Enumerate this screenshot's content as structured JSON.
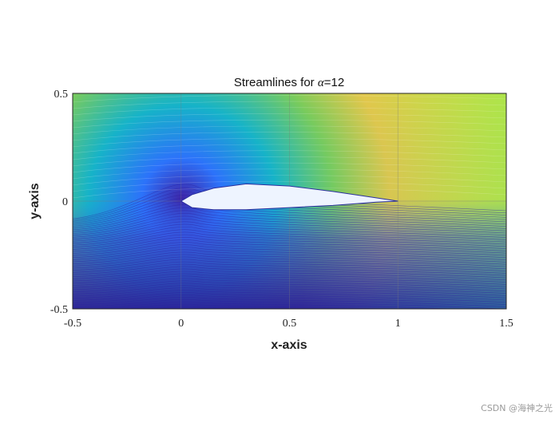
{
  "chart_data": {
    "type": "streamline",
    "title_prefix": "Streamlines for ",
    "title_symbol": "α",
    "title_suffix": "=12",
    "xlabel": "x-axis",
    "ylabel": "y-axis",
    "xlim": [
      -0.5,
      1.5
    ],
    "ylim": [
      -0.5,
      0.5
    ],
    "xticks": [
      {
        "value": -0.5,
        "label": "-0.5"
      },
      {
        "value": 0,
        "label": "0"
      },
      {
        "value": 0.5,
        "label": "0.5"
      },
      {
        "value": 1,
        "label": "1"
      },
      {
        "value": 1.5,
        "label": "1.5"
      }
    ],
    "yticks": [
      {
        "value": -0.5,
        "label": "-0.5"
      },
      {
        "value": 0,
        "label": "0"
      },
      {
        "value": 0.5,
        "label": "0.5"
      }
    ],
    "grid": true,
    "angle_of_attack_deg": 12,
    "airfoil": {
      "leading_edge": [
        0.0,
        0.0
      ],
      "trailing_edge": [
        1.0,
        0.0
      ],
      "upper_surface": [
        [
          0.0,
          0.0
        ],
        [
          0.05,
          0.03
        ],
        [
          0.15,
          0.06
        ],
        [
          0.3,
          0.08
        ],
        [
          0.5,
          0.07
        ],
        [
          0.7,
          0.045
        ],
        [
          0.9,
          0.015
        ],
        [
          1.0,
          0.0
        ]
      ],
      "lower_surface": [
        [
          0.0,
          0.0
        ],
        [
          0.05,
          -0.03
        ],
        [
          0.15,
          -0.04
        ],
        [
          0.3,
          -0.04
        ],
        [
          0.5,
          -0.03
        ],
        [
          0.7,
          -0.02
        ],
        [
          0.9,
          -0.005
        ],
        [
          1.0,
          0.0
        ]
      ]
    },
    "colormap": [
      "#3e26a8",
      "#2c72fa",
      "#16b3c8",
      "#79cb5c",
      "#f9c93e",
      "#f9fb15"
    ]
  },
  "watermark": "CSDN @海神之光"
}
